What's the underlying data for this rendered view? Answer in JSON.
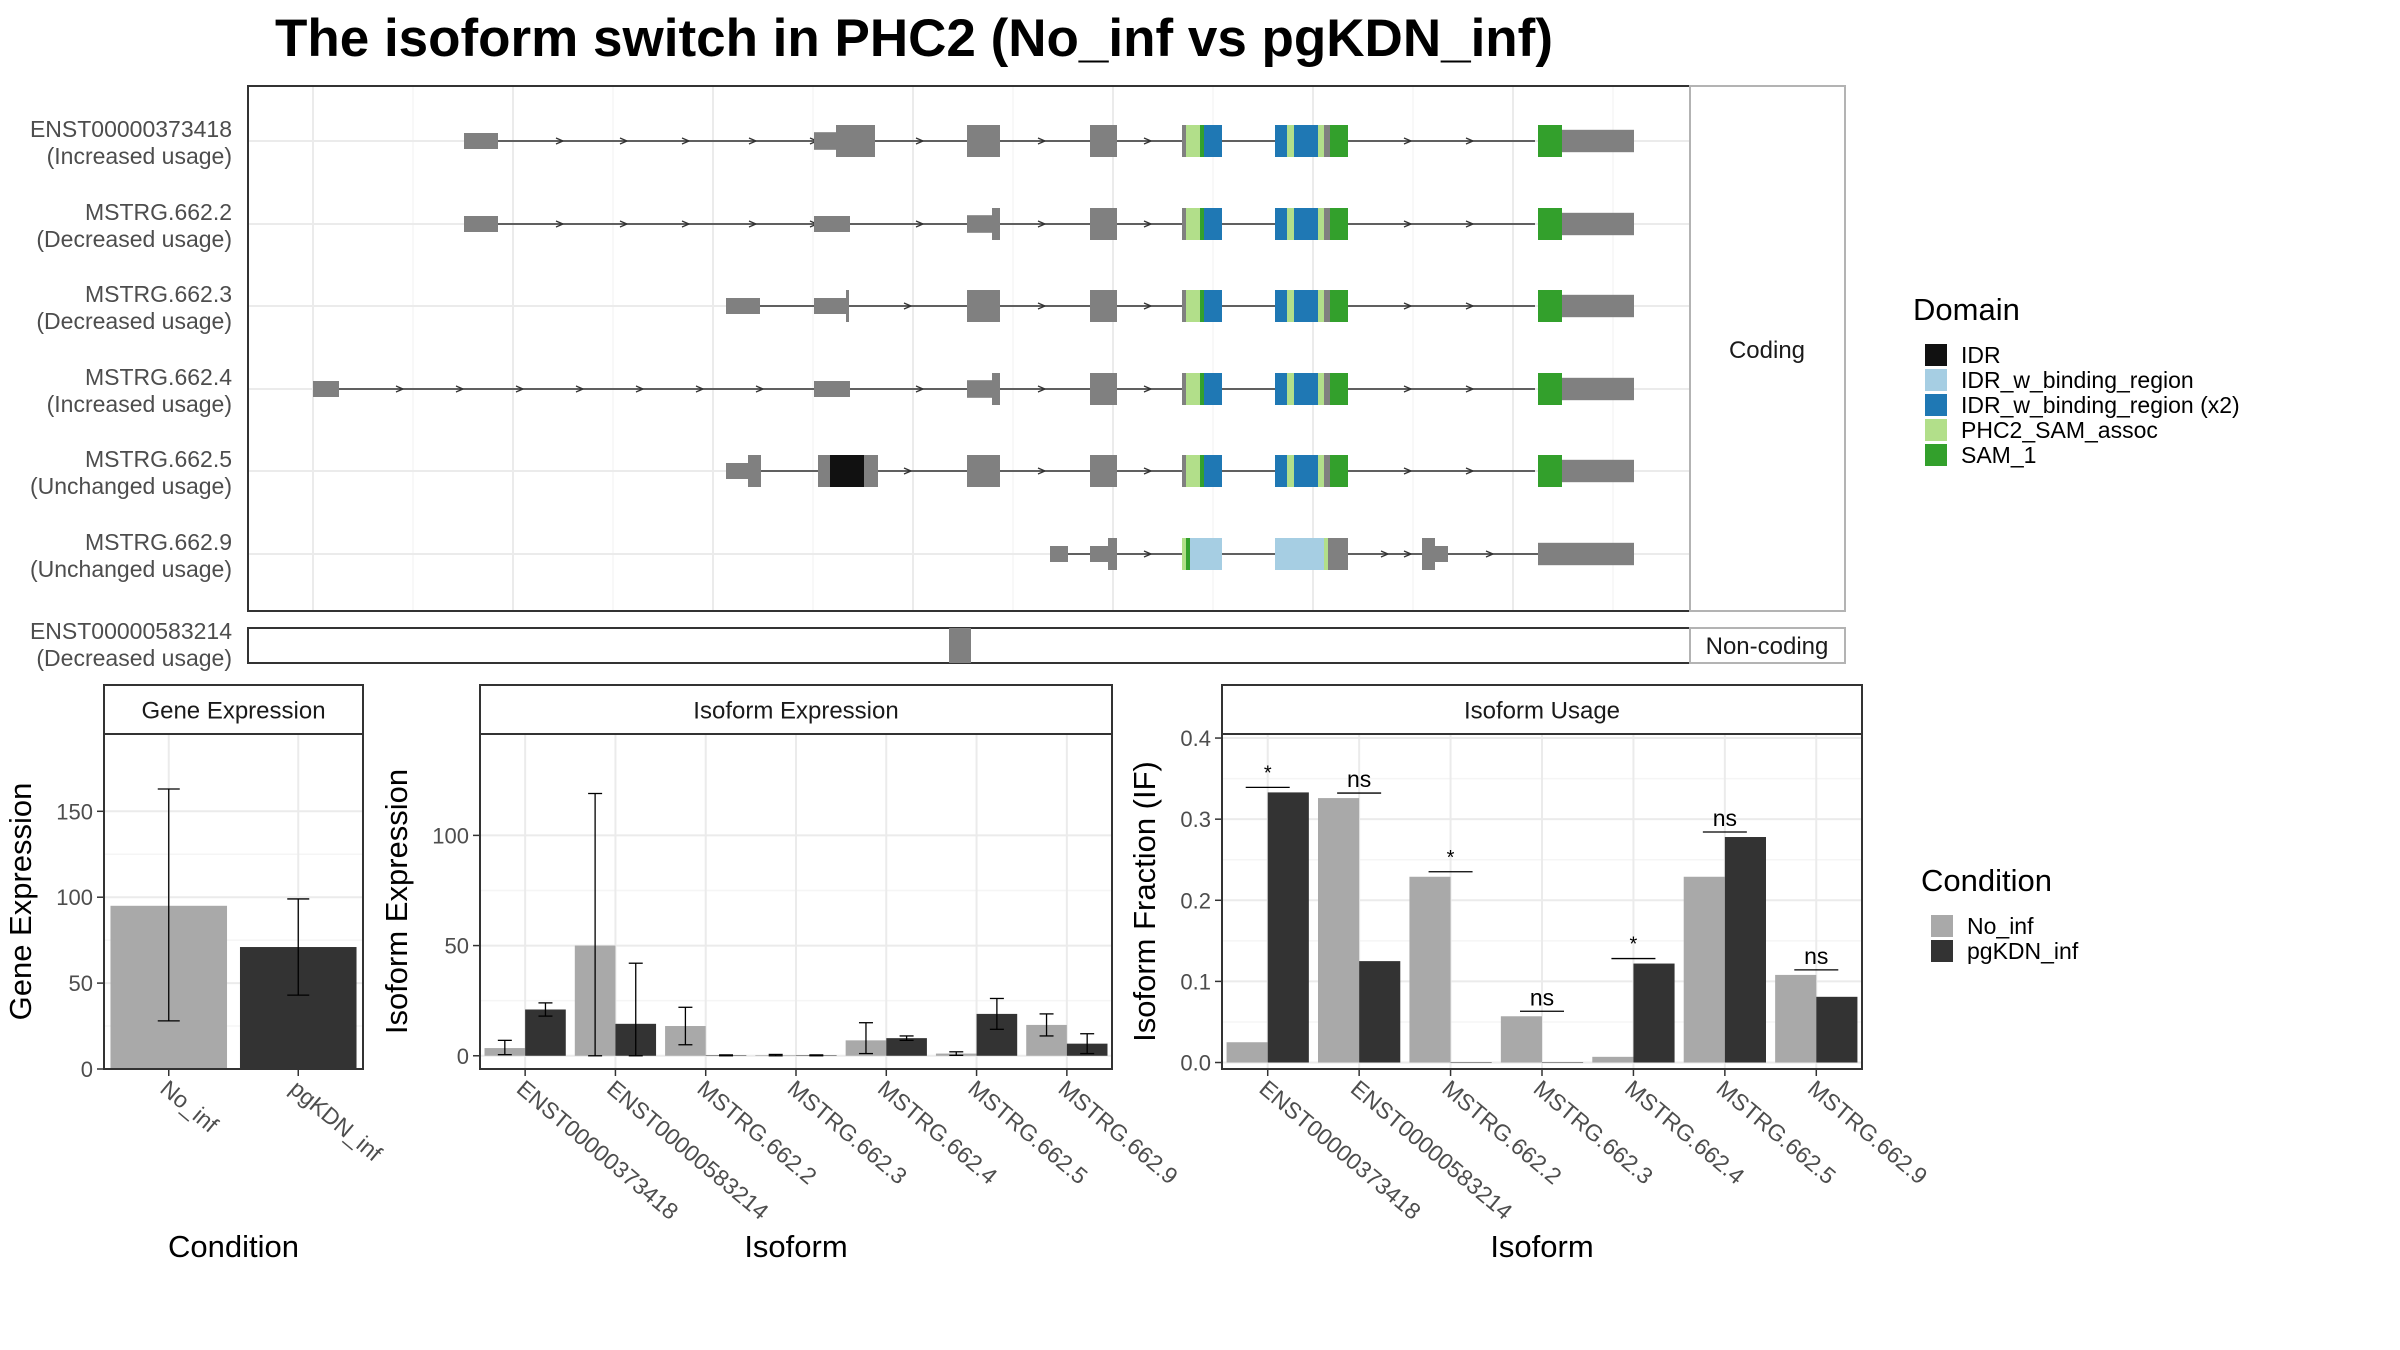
{
  "title": "The isoform switch in PHC2 (No_inf vs pgKDN_inf)",
  "colors": {
    "exon": "#808080",
    "IDR": "#111111",
    "IDR_w_binding_region": "#a6cee3",
    "IDR_w_binding_region_x2": "#1f78b4",
    "PHC2_SAM_assoc": "#b2df8a",
    "SAM_1": "#33a02c",
    "no_inf": "#a9a9a9",
    "pgkdn_inf": "#333333"
  },
  "structure": {
    "coding_label": "Coding",
    "noncoding_label": "Non-coding",
    "isoforms": [
      {
        "id": "ENST00000373418",
        "usage": "(Increased usage)"
      },
      {
        "id": "MSTRG.662.2",
        "usage": "(Decreased usage)"
      },
      {
        "id": "MSTRG.662.3",
        "usage": "(Decreased usage)"
      },
      {
        "id": "MSTRG.662.4",
        "usage": "(Increased usage)"
      },
      {
        "id": "MSTRG.662.5",
        "usage": "(Unchanged usage)"
      },
      {
        "id": "MSTRG.662.9",
        "usage": "(Unchanged usage)"
      }
    ],
    "noncoding": {
      "id": "ENST00000583214",
      "usage": "(Decreased usage)"
    }
  },
  "legend_domain": {
    "title": "Domain",
    "items": [
      {
        "label": "IDR",
        "color": "#111111"
      },
      {
        "label": "IDR_w_binding_region",
        "color": "#a6cee3"
      },
      {
        "label": "IDR_w_binding_region (x2)",
        "color": "#1f78b4"
      },
      {
        "label": "PHC2_SAM_assoc",
        "color": "#b2df8a"
      },
      {
        "label": "SAM_1",
        "color": "#33a02c"
      }
    ]
  },
  "legend_condition": {
    "title": "Condition",
    "items": [
      {
        "label": "No_inf",
        "color": "#a9a9a9"
      },
      {
        "label": "pgKDN_inf",
        "color": "#333333"
      }
    ]
  },
  "chart_data": [
    {
      "type": "bar",
      "title": "Gene Expression",
      "xlabel": "Condition",
      "ylabel": "Gene Expression",
      "categories": [
        "No_inf",
        "pgKDN_inf"
      ],
      "values": [
        95,
        71
      ],
      "error_low": [
        28,
        43
      ],
      "error_high": [
        163,
        99
      ],
      "ylim": [
        0,
        195
      ],
      "yticks": [
        0,
        50,
        100,
        150
      ]
    },
    {
      "type": "bar",
      "title": "Isoform Expression",
      "xlabel": "Isoform",
      "ylabel": "Isoform Expression",
      "categories": [
        "ENST00000373418",
        "ENST00000583214",
        "MSTRG.662.2",
        "MSTRG.662.3",
        "MSTRG.662.4",
        "MSTRG.662.5",
        "MSTRG.662.9"
      ],
      "series": [
        {
          "name": "No_inf",
          "values": [
            3.5,
            50,
            13.5,
            0.3,
            7,
            1,
            14
          ],
          "error_low": [
            0.5,
            0,
            5,
            0,
            1,
            0.2,
            9
          ],
          "error_high": [
            7,
            119,
            22,
            0.6,
            15,
            1.8,
            19
          ]
        },
        {
          "name": "pgKDN_inf",
          "values": [
            21,
            14.5,
            0.2,
            0.2,
            8,
            19,
            5.5
          ],
          "error_low": [
            18,
            0,
            0,
            0,
            7,
            12,
            1
          ],
          "error_high": [
            24,
            42,
            0.4,
            0.4,
            9,
            26,
            10
          ]
        }
      ],
      "ylim": [
        -6,
        146
      ],
      "yticks": [
        0,
        50,
        100
      ]
    },
    {
      "type": "bar",
      "title": "Isoform Usage",
      "xlabel": "Isoform",
      "ylabel": "Isoform Fraction (IF)",
      "categories": [
        "ENST00000373418",
        "ENST00000583214",
        "MSTRG.662.2",
        "MSTRG.662.3",
        "MSTRG.662.4",
        "MSTRG.662.5",
        "MSTRG.662.9"
      ],
      "series": [
        {
          "name": "No_inf",
          "values": [
            0.025,
            0.326,
            0.229,
            0.057,
            0.007,
            0.229,
            0.108
          ]
        },
        {
          "name": "pgKDN_inf",
          "values": [
            0.333,
            0.125,
            0,
            0,
            0.122,
            0.278,
            0.081
          ]
        }
      ],
      "significance": [
        "*",
        "ns",
        "*",
        "ns",
        "*",
        "ns",
        "ns"
      ],
      "ylim": [
        -0.008,
        0.405
      ],
      "yticks": [
        0.0,
        0.1,
        0.2,
        0.3,
        0.4
      ]
    }
  ]
}
